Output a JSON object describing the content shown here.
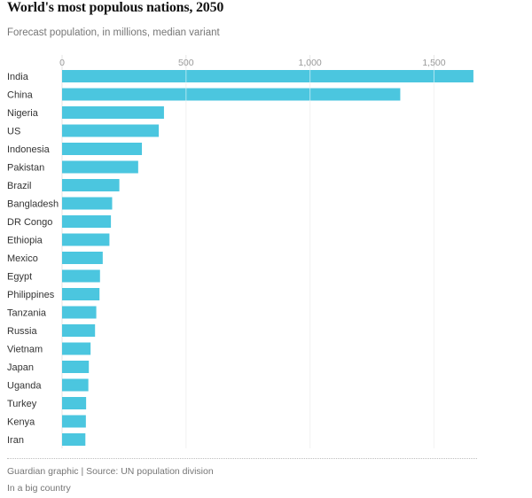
{
  "chart_data": {
    "type": "bar",
    "orientation": "horizontal",
    "title": "World's most populous nations, 2050",
    "subtitle": "Forecast population, in millions, median variant",
    "categories": [
      "India",
      "China",
      "Nigeria",
      "US",
      "Indonesia",
      "Pakistan",
      "Brazil",
      "Bangladesh",
      "DR Congo",
      "Ethiopia",
      "Mexico",
      "Egypt",
      "Philippines",
      "Tanzania",
      "Russia",
      "Vietnam",
      "Japan",
      "Uganda",
      "Turkey",
      "Kenya",
      "Iran"
    ],
    "values": [
      1659,
      1364,
      411,
      390,
      322,
      307,
      231,
      202,
      197,
      191,
      164,
      153,
      151,
      138,
      133,
      115,
      108,
      106,
      97,
      96,
      94
    ],
    "xlim": [
      0,
      1670
    ],
    "xticks": [
      0,
      500,
      1000,
      1500
    ],
    "xtick_labels": [
      "0",
      "500",
      "1,000",
      "1,500"
    ],
    "xlabel": "",
    "ylabel": "",
    "grid": true,
    "bar_color": "#4bc6df"
  },
  "footer": {
    "source": "Guardian graphic | Source: UN population division",
    "credit": "In a big country"
  }
}
